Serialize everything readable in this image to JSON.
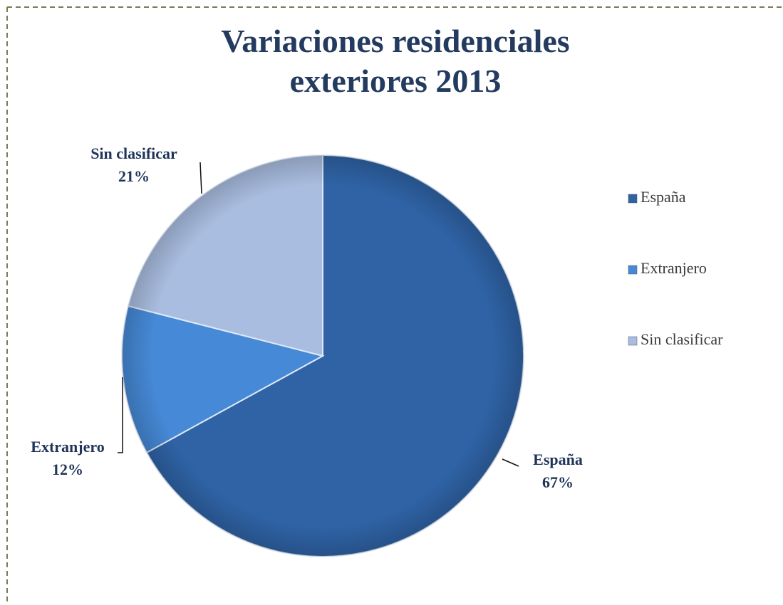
{
  "chart_data": {
    "type": "pie",
    "title": "Variaciones residenciales exteriores 2013",
    "categories": [
      "España",
      "Extranjero",
      "Sin clasificar"
    ],
    "values": [
      67,
      12,
      21
    ],
    "value_labels": [
      "67%",
      "12%",
      "21%"
    ],
    "colors": [
      "#2f63a6",
      "#4689d6",
      "#a9bde0"
    ],
    "legend": "right"
  }
}
